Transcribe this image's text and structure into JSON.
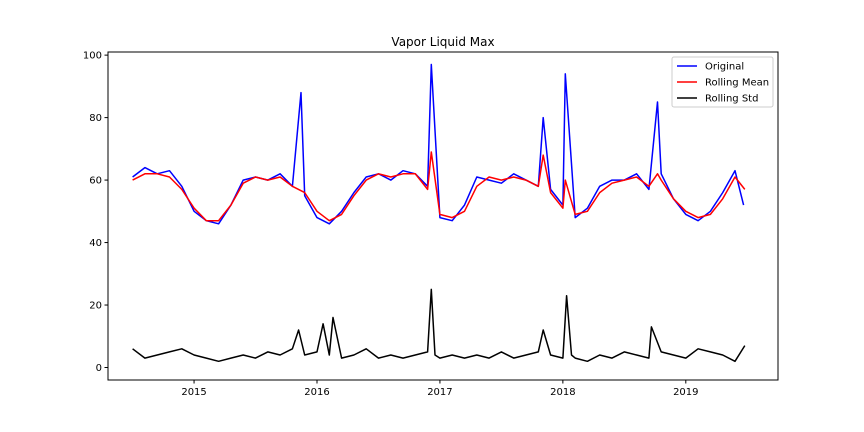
{
  "chart_data": {
    "type": "line",
    "title": "Vapor Liquid Max",
    "xlabel": "",
    "ylabel": "",
    "xlim": [
      2014.3,
      2019.75
    ],
    "ylim": [
      -4,
      101
    ],
    "x_ticks": [
      2015,
      2016,
      2017,
      2018,
      2019
    ],
    "x_tick_labels": [
      "2015",
      "2016",
      "2017",
      "2018",
      "2019"
    ],
    "y_ticks": [
      0,
      20,
      40,
      60,
      80,
      100
    ],
    "y_tick_labels": [
      "0",
      "20",
      "40",
      "60",
      "80",
      "100"
    ],
    "grid": false,
    "legend_position": "top-right",
    "series": [
      {
        "name": "Original",
        "color": "#0000ff",
        "x": [
          2014.5,
          2014.6,
          2014.7,
          2014.8,
          2014.9,
          2015.0,
          2015.1,
          2015.2,
          2015.3,
          2015.4,
          2015.5,
          2015.6,
          2015.7,
          2015.8,
          2015.87,
          2015.9,
          2016.0,
          2016.1,
          2016.2,
          2016.3,
          2016.4,
          2016.5,
          2016.6,
          2016.7,
          2016.8,
          2016.9,
          2016.93,
          2017.0,
          2017.1,
          2017.2,
          2017.3,
          2017.4,
          2017.5,
          2017.6,
          2017.7,
          2017.8,
          2017.84,
          2017.9,
          2018.0,
          2018.02,
          2018.1,
          2018.2,
          2018.3,
          2018.4,
          2018.5,
          2018.6,
          2018.7,
          2018.77,
          2018.8,
          2018.9,
          2019.0,
          2019.1,
          2019.2,
          2019.3,
          2019.4,
          2019.47
        ],
        "values": [
          61,
          64,
          62,
          63,
          58,
          50,
          47,
          46,
          52,
          60,
          61,
          60,
          62,
          58,
          88,
          55,
          48,
          46,
          50,
          56,
          61,
          62,
          60,
          63,
          62,
          58,
          97,
          48,
          47,
          52,
          61,
          60,
          59,
          62,
          60,
          58,
          80,
          57,
          52,
          94,
          48,
          51,
          58,
          60,
          60,
          62,
          57,
          85,
          62,
          54,
          49,
          47,
          50,
          56,
          63,
          52
        ]
      },
      {
        "name": "Rolling Mean",
        "color": "#ff0000",
        "x": [
          2014.5,
          2014.6,
          2014.7,
          2014.8,
          2014.9,
          2015.0,
          2015.1,
          2015.2,
          2015.3,
          2015.4,
          2015.5,
          2015.6,
          2015.7,
          2015.8,
          2015.9,
          2016.0,
          2016.1,
          2016.2,
          2016.3,
          2016.4,
          2016.5,
          2016.6,
          2016.7,
          2016.8,
          2016.9,
          2016.93,
          2017.0,
          2017.1,
          2017.2,
          2017.3,
          2017.4,
          2017.5,
          2017.6,
          2017.7,
          2017.8,
          2017.84,
          2017.9,
          2018.0,
          2018.02,
          2018.1,
          2018.2,
          2018.3,
          2018.4,
          2018.5,
          2018.6,
          2018.7,
          2018.77,
          2018.8,
          2018.9,
          2019.0,
          2019.1,
          2019.2,
          2019.3,
          2019.4,
          2019.48
        ],
        "values": [
          60,
          62,
          62,
          61,
          57,
          51,
          47,
          47,
          52,
          59,
          61,
          60,
          61,
          58,
          56,
          50,
          47,
          49,
          55,
          60,
          62,
          61,
          62,
          62,
          57,
          69,
          49,
          48,
          50,
          58,
          61,
          60,
          61,
          60,
          58,
          68,
          56,
          51,
          60,
          49,
          50,
          56,
          59,
          60,
          61,
          58,
          62,
          60,
          54,
          50,
          48,
          49,
          54,
          61,
          57
        ]
      },
      {
        "name": "Rolling Std",
        "color": "#000000",
        "x": [
          2014.5,
          2014.6,
          2014.7,
          2014.8,
          2014.9,
          2015.0,
          2015.1,
          2015.2,
          2015.3,
          2015.4,
          2015.5,
          2015.6,
          2015.7,
          2015.8,
          2015.85,
          2015.9,
          2016.0,
          2016.05,
          2016.1,
          2016.13,
          2016.2,
          2016.3,
          2016.4,
          2016.5,
          2016.6,
          2016.7,
          2016.8,
          2016.9,
          2016.93,
          2016.96,
          2017.0,
          2017.1,
          2017.2,
          2017.3,
          2017.4,
          2017.5,
          2017.6,
          2017.7,
          2017.8,
          2017.84,
          2017.9,
          2018.0,
          2018.03,
          2018.07,
          2018.1,
          2018.2,
          2018.3,
          2018.4,
          2018.5,
          2018.6,
          2018.7,
          2018.72,
          2018.8,
          2018.9,
          2019.0,
          2019.1,
          2019.2,
          2019.3,
          2019.4,
          2019.48
        ],
        "values": [
          6,
          3,
          4,
          5,
          6,
          4,
          3,
          2,
          3,
          4,
          3,
          5,
          4,
          6,
          12,
          4,
          5,
          14,
          4,
          16,
          3,
          4,
          6,
          3,
          4,
          3,
          4,
          5,
          25,
          4,
          3,
          4,
          3,
          4,
          3,
          5,
          3,
          4,
          5,
          12,
          4,
          3,
          23,
          4,
          3,
          2,
          4,
          3,
          5,
          4,
          3,
          13,
          5,
          4,
          3,
          6,
          5,
          4,
          2,
          7
        ]
      }
    ]
  }
}
